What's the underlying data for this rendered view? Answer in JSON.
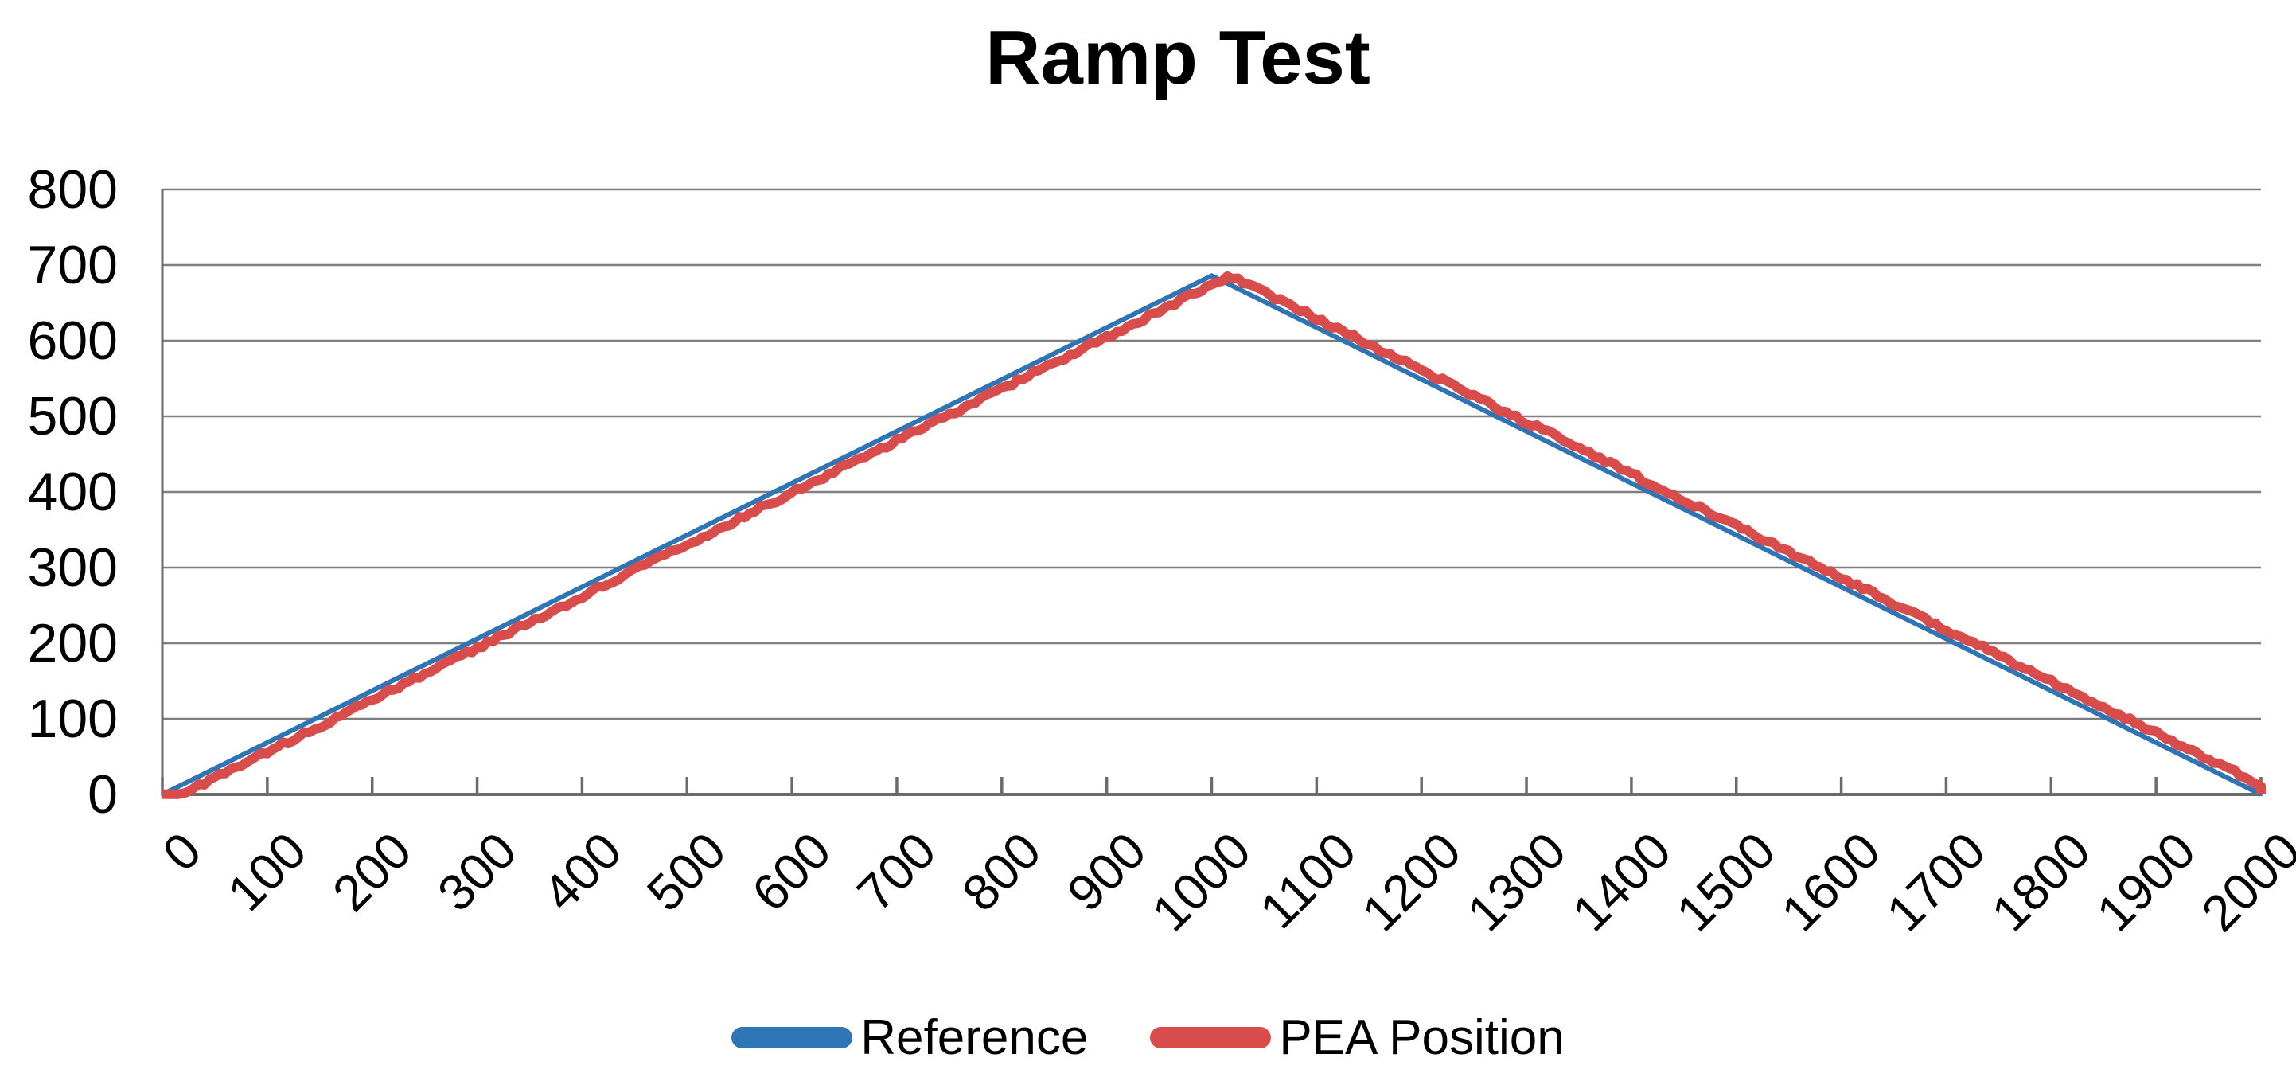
{
  "chart_data": {
    "type": "line",
    "title": "Ramp Test",
    "xlabel": "",
    "ylabel": "",
    "xlim": [
      0,
      2000
    ],
    "ylim": [
      0,
      800
    ],
    "x_ticks": [
      0,
      100,
      200,
      300,
      400,
      500,
      600,
      700,
      800,
      900,
      1000,
      1100,
      1200,
      1300,
      1400,
      1500,
      1600,
      1700,
      1800,
      1900,
      2000
    ],
    "y_ticks": [
      0,
      100,
      200,
      300,
      400,
      500,
      600,
      700,
      800
    ],
    "grid": "horizontal-major",
    "x_tick_style": "inside",
    "x_tick_label_rotation": -45,
    "legend_position": "bottom-center",
    "series": [
      {
        "name": "Reference",
        "color": "#2E75B6",
        "line_width": 6,
        "shape": "triangle-wave",
        "points": [
          [
            0,
            0
          ],
          [
            1000,
            686
          ],
          [
            2000,
            0
          ]
        ]
      },
      {
        "name": "PEA Position",
        "color": "#D84C4C",
        "line_width": 12,
        "shape": "triangle-wave-tracking",
        "lag_x_units": 18,
        "noise_amplitude_y_units": 3,
        "points": [
          [
            0,
            0
          ],
          [
            1000,
            686
          ],
          [
            2000,
            0
          ]
        ]
      }
    ]
  },
  "colors": {
    "background": "#FFFFFF",
    "gridline": "#7F7F7F",
    "axis": "#6B6B6B",
    "tick": "#6B6B6B",
    "text": "#000000"
  }
}
